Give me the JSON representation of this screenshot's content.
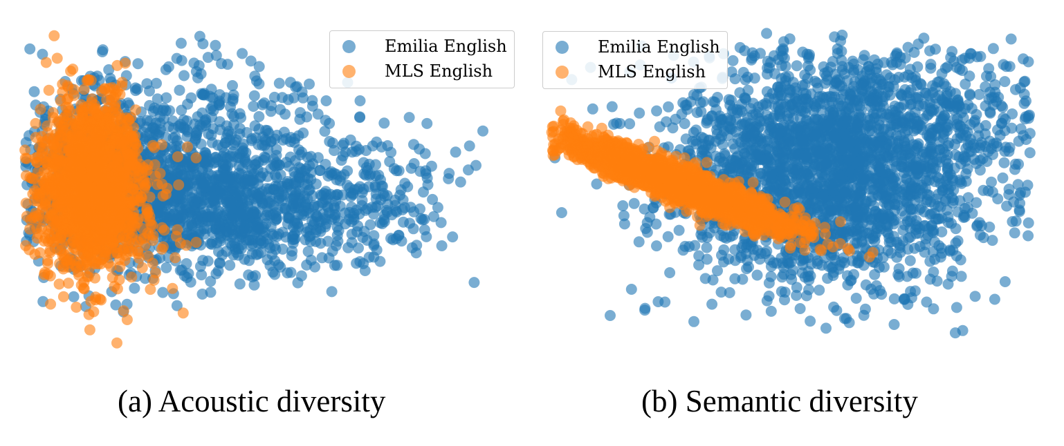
{
  "chart_data": [
    {
      "type": "scatter",
      "caption": "(a) Acoustic diversity",
      "legend": {
        "placement": "top-right",
        "entries": [
          "Emilia English",
          "MLS English"
        ]
      },
      "grid": false,
      "axes_visible": false,
      "xlim": [
        0,
        100
      ],
      "ylim": [
        0,
        100
      ],
      "series": [
        {
          "name": "Emilia English",
          "color": "#1f77b4",
          "clusters": [
            {
              "cx": 38,
              "cy": 47,
              "sx": 17,
              "sy": 11,
              "n": 1300
            },
            {
              "cx": 15,
              "cy": 55,
              "sx": 8,
              "sy": 14,
              "n": 500
            },
            {
              "cx": 70,
              "cy": 50,
              "sx": 11,
              "sy": 10,
              "n": 160
            },
            {
              "cx": 38,
              "cy": 72,
              "sx": 15,
              "sy": 11,
              "n": 220
            }
          ]
        },
        {
          "name": "MLS English",
          "color": "#ff7f0e",
          "clusters": [
            {
              "cx": 14,
              "cy": 52,
              "sx": 5.5,
              "sy": 13,
              "n": 1500
            },
            {
              "cx": 17,
              "cy": 46,
              "sx": 9,
              "sy": 16,
              "n": 150
            }
          ]
        }
      ]
    },
    {
      "type": "scatter",
      "caption": "(b) Semantic diversity",
      "legend": {
        "placement": "top-left",
        "entries": [
          "Emilia English",
          "MLS English"
        ]
      },
      "grid": false,
      "axes_visible": false,
      "xlim": [
        0,
        100
      ],
      "ylim": [
        0,
        100
      ],
      "series": [
        {
          "name": "Emilia English",
          "color": "#1f77b4",
          "clusters": [
            {
              "cx": 58,
              "cy": 50,
              "sx": 17,
              "sy": 15,
              "n": 1500
            },
            {
              "cx": 70,
              "cy": 76,
              "sx": 19,
              "sy": 12,
              "n": 700
            },
            {
              "cx": 48,
              "cy": 58,
              "sx": 14,
              "sy": 15,
              "n": 400
            }
          ]
        },
        {
          "name": "MLS English",
          "color": "#ff7f0e",
          "clusters": [
            {
              "cx": 26,
              "cy": 53,
              "sx": 14,
              "sy": 2.6,
              "n": 2000,
              "angle": -31
            }
          ]
        }
      ]
    }
  ]
}
